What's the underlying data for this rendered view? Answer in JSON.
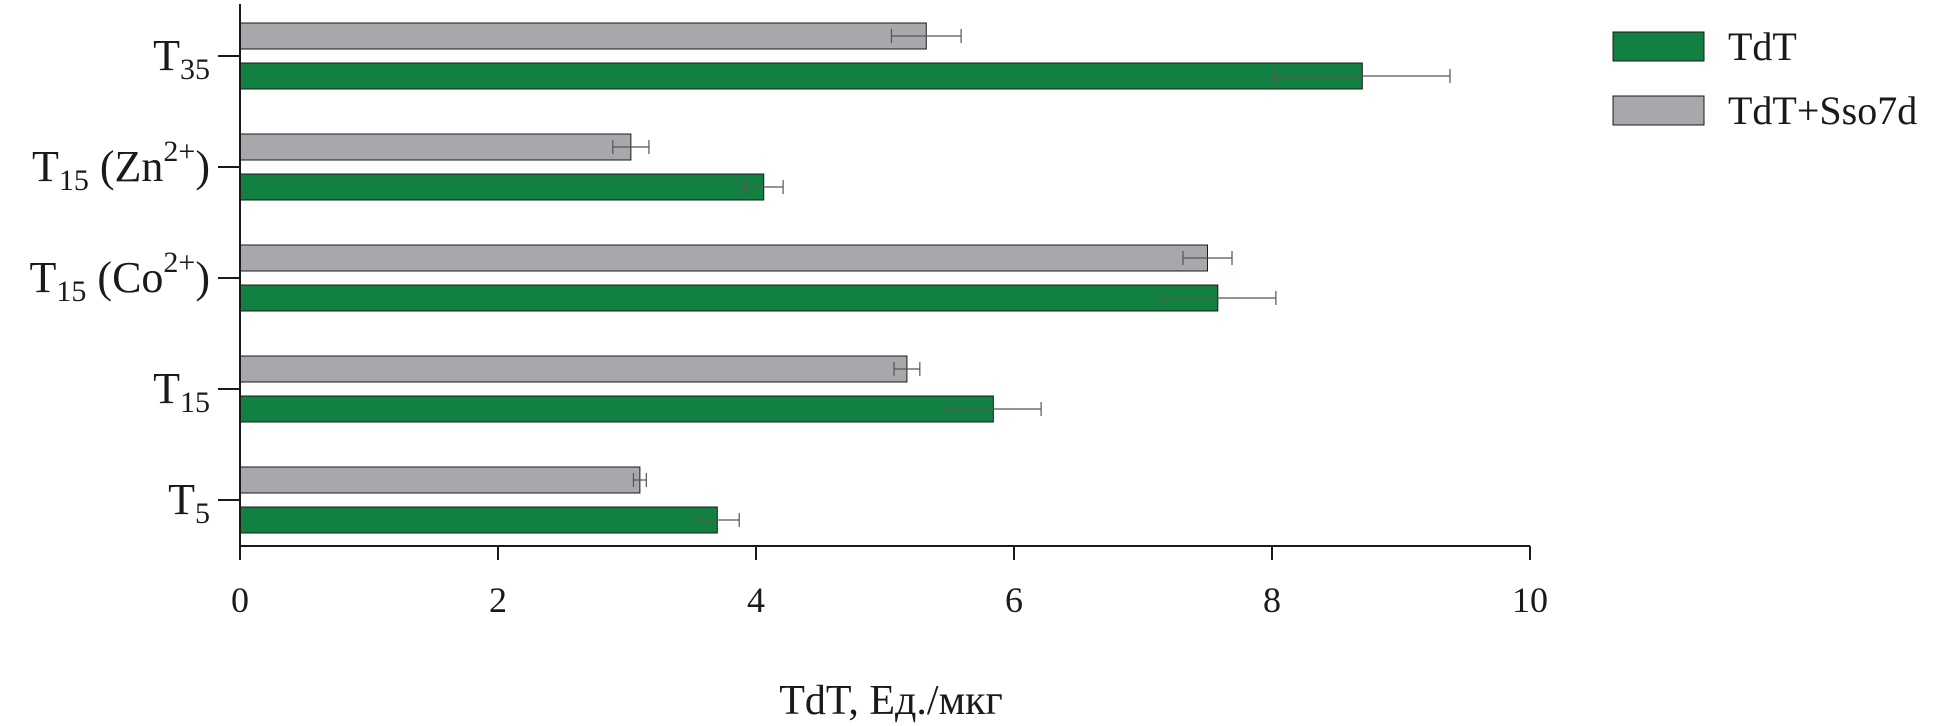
{
  "chart_data": {
    "type": "bar",
    "orientation": "horizontal",
    "xlabel": "TdT, Ед./мкг",
    "ylabel": "",
    "xlim": [
      0,
      10
    ],
    "xticks": [
      "0",
      "2",
      "4",
      "6",
      "8",
      "10"
    ],
    "grid": false,
    "legend_position": "top-right",
    "categories": [
      {
        "main": "T",
        "sub": "5",
        "tail": "",
        "sup": "",
        "close": ""
      },
      {
        "main": "T",
        "sub": "15",
        "tail": "",
        "sup": "",
        "close": ""
      },
      {
        "main": "T",
        "sub": "15",
        "tail": " (Co",
        "sup": "2+",
        "close": ")"
      },
      {
        "main": "T",
        "sub": "15",
        "tail": " (Zn",
        "sup": "2+",
        "close": ")"
      },
      {
        "main": "T",
        "sub": "35",
        "tail": "",
        "sup": "",
        "close": ""
      }
    ],
    "series": [
      {
        "name": "TdT",
        "color": "#128040",
        "values": [
          3.7,
          5.84,
          7.58,
          4.06,
          8.7
        ],
        "errors": [
          0.17,
          0.37,
          0.45,
          0.15,
          0.68
        ]
      },
      {
        "name": "TdT+Sso7d",
        "color": "#a7a8ab",
        "values": [
          3.1,
          5.17,
          7.5,
          3.03,
          5.32
        ],
        "errors": [
          0.05,
          0.1,
          0.19,
          0.14,
          0.27
        ]
      }
    ]
  }
}
